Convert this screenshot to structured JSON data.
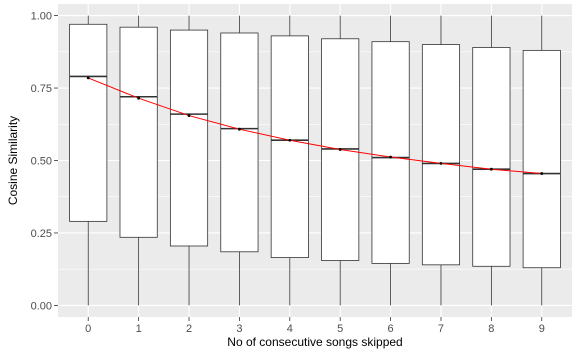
{
  "chart_data": {
    "type": "box",
    "xlabel": "No of consecutive songs skipped",
    "ylabel": "Cosine Similarity",
    "categories": [
      "0",
      "1",
      "2",
      "3",
      "4",
      "5",
      "6",
      "7",
      "8",
      "9"
    ],
    "ylim": [
      -0.04,
      1.04
    ],
    "yticks": [
      0.0,
      0.25,
      0.5,
      0.75,
      1.0
    ],
    "ytick_labels": [
      "0.00",
      "0.25",
      "0.50",
      "0.75",
      "1.00"
    ],
    "grid": true,
    "boxes": [
      {
        "x": "0",
        "min": 0.0,
        "q1": 0.29,
        "median": 0.79,
        "q3": 0.97,
        "max": 1.0
      },
      {
        "x": "1",
        "min": 0.0,
        "q1": 0.235,
        "median": 0.72,
        "q3": 0.96,
        "max": 1.0
      },
      {
        "x": "2",
        "min": 0.0,
        "q1": 0.205,
        "median": 0.66,
        "q3": 0.95,
        "max": 1.0
      },
      {
        "x": "3",
        "min": 0.0,
        "q1": 0.185,
        "median": 0.61,
        "q3": 0.94,
        "max": 1.0
      },
      {
        "x": "4",
        "min": 0.0,
        "q1": 0.165,
        "median": 0.57,
        "q3": 0.93,
        "max": 1.0
      },
      {
        "x": "5",
        "min": 0.0,
        "q1": 0.155,
        "median": 0.54,
        "q3": 0.92,
        "max": 1.0
      },
      {
        "x": "6",
        "min": 0.0,
        "q1": 0.145,
        "median": 0.51,
        "q3": 0.91,
        "max": 1.0
      },
      {
        "x": "7",
        "min": 0.0,
        "q1": 0.14,
        "median": 0.49,
        "q3": 0.9,
        "max": 1.0
      },
      {
        "x": "8",
        "min": 0.0,
        "q1": 0.135,
        "median": 0.47,
        "q3": 0.89,
        "max": 1.0
      },
      {
        "x": "9",
        "min": 0.0,
        "q1": 0.13,
        "median": 0.455,
        "q3": 0.88,
        "max": 1.0
      }
    ],
    "mean_line": {
      "color": "#ff0000",
      "values": [
        0.785,
        0.715,
        0.655,
        0.608,
        0.57,
        0.538,
        0.512,
        0.49,
        0.47,
        0.455
      ]
    },
    "colors": {
      "panel": "#ebebeb",
      "grid_major": "#ffffff",
      "box_fill": "#ffffff",
      "box_stroke": "#333333",
      "point": "#000000"
    }
  }
}
